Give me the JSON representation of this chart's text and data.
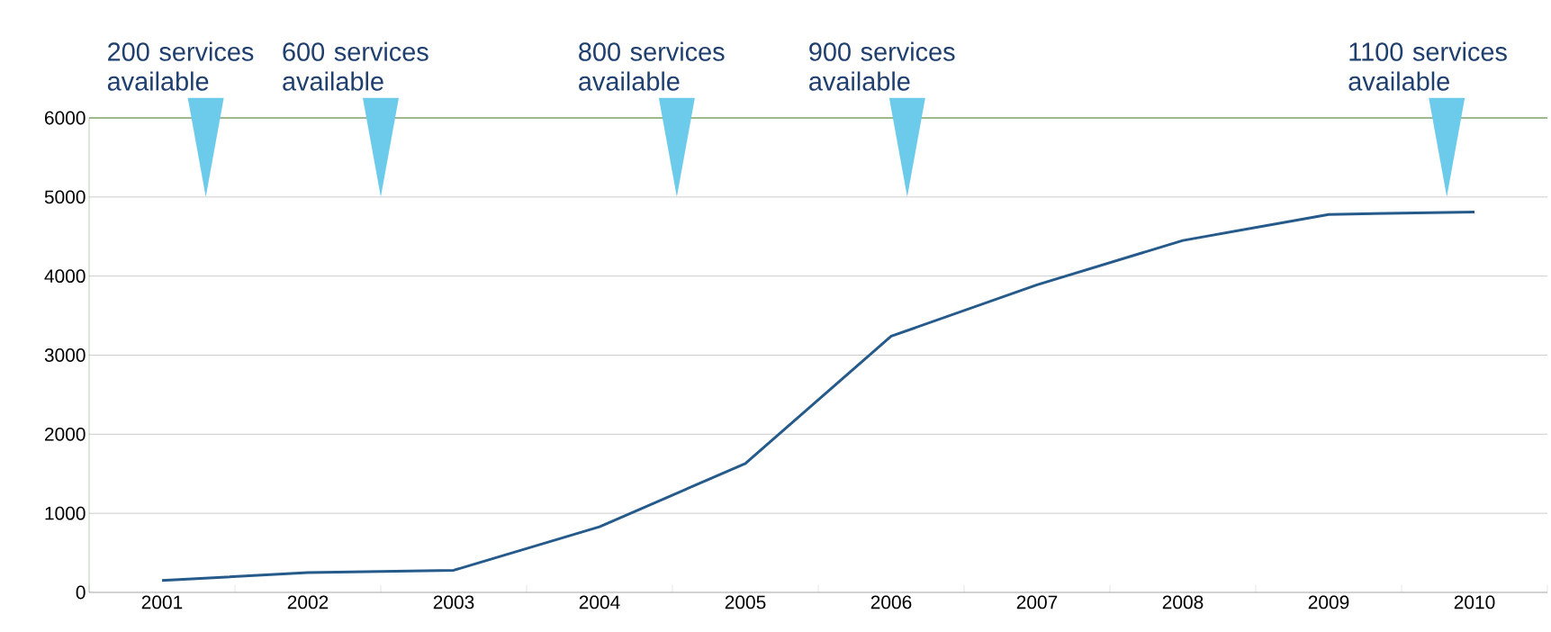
{
  "chart_data": {
    "type": "line",
    "x": [
      2001,
      2002,
      2003,
      2004,
      2005,
      2006,
      2007,
      2008,
      2009,
      2010
    ],
    "values": [
      150,
      250,
      280,
      830,
      1630,
      3240,
      3890,
      4450,
      4780,
      4810
    ],
    "color": "#255a8a",
    "xlim": [
      2000.5,
      2010.5
    ],
    "xticks": [
      2001,
      2002,
      2003,
      2004,
      2005,
      2006,
      2007,
      2008,
      2009,
      2010
    ],
    "ylim": [
      0,
      6000
    ],
    "yticks": [
      0,
      1000,
      2000,
      3000,
      4000,
      5000,
      6000
    ],
    "grid": "y",
    "marker": "none",
    "line_style": "solid",
    "annotations": [
      "200 services available",
      "600 services available",
      "800 services available",
      "900 services available",
      "1100 services available"
    ]
  }
}
